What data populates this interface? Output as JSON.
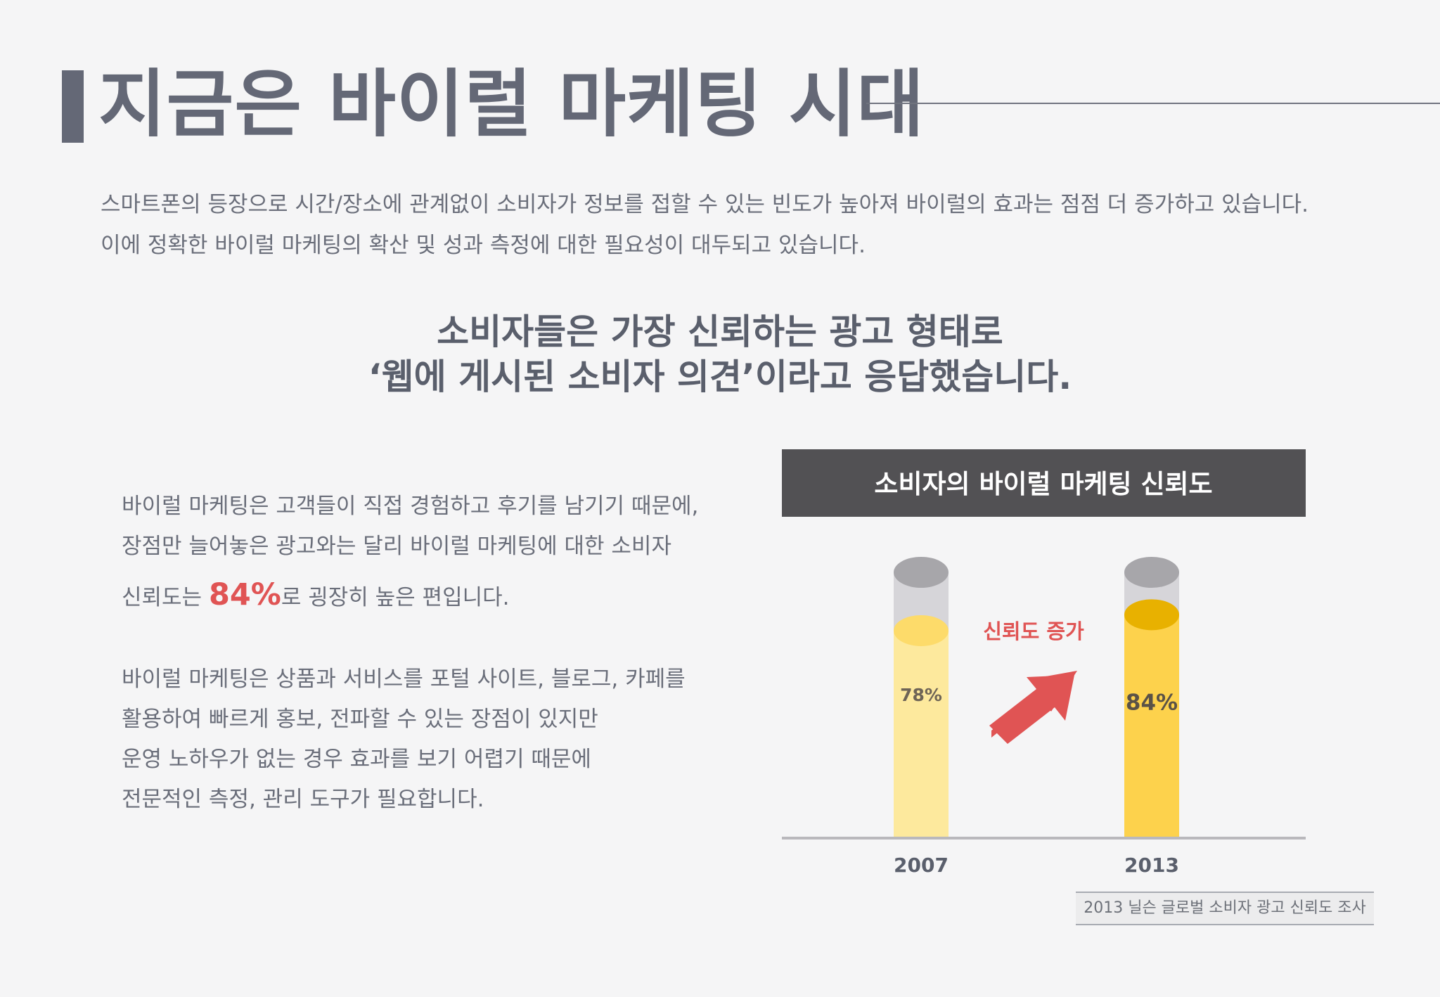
{
  "title": "지금은 바이럴 마케팅 시대",
  "intro": {
    "line1": "스마트폰의 등장으로 시간/장소에 관계없이 소비자가 정보를 접할 수 있는 빈도가 높아져 바이럴의 효과는 점점 더 증가하고 있습니다.",
    "line2": "이에 정확한 바이럴 마케팅의 확산 및 성과 측정에 대한 필요성이 대두되고 있습니다."
  },
  "headline": {
    "line1": "소비자들은 가장 신뢰하는 광고 형태로",
    "line2": "‘웹에 게시된 소비자 의견’이라고 응답했습니다."
  },
  "paragraph1": {
    "line1": "바이럴 마케팅은 고객들이 직접 경험하고 후기를 남기기 때문에,",
    "line2": "장점만 늘어놓은 광고와는 달리 바이럴 마케팅에 대한 소비자",
    "line3_prefix": "신뢰도는 ",
    "line3_highlight": "84%",
    "line3_suffix": "로 굉장히 높은 편입니다."
  },
  "paragraph2": {
    "line1": "바이럴 마케팅은 상품과 서비스를 포털 사이트, 블로그, 카페를",
    "line2": "활용하여 빠르게 홍보, 전파할 수 있는 장점이 있지만",
    "line3": "운영 노하우가 없는 경우 효과를 보기 어렵기 때문에",
    "line4": "전문적인 측정, 관리 도구가 필요합니다."
  },
  "chart_data": {
    "type": "bar",
    "title": "소비자의 바이럴 마케팅 신뢰도",
    "categories": [
      "2007",
      "2013"
    ],
    "values": [
      78,
      84
    ],
    "value_labels": [
      "78%",
      "84%"
    ],
    "ylim": [
      0,
      100
    ],
    "annotation": "신뢰도 증가",
    "source": "2013 닐슨 글로벌 소비자 광고 신뢰도 조사"
  },
  "colors": {
    "title": "#646876",
    "highlight": "#e05454",
    "chart_header_bg": "#525154",
    "bar_2007": "#fde99d",
    "bar_2013": "#fdd24c",
    "cylinder_empty": "#d6d5d9",
    "arrow": "#e05454"
  }
}
